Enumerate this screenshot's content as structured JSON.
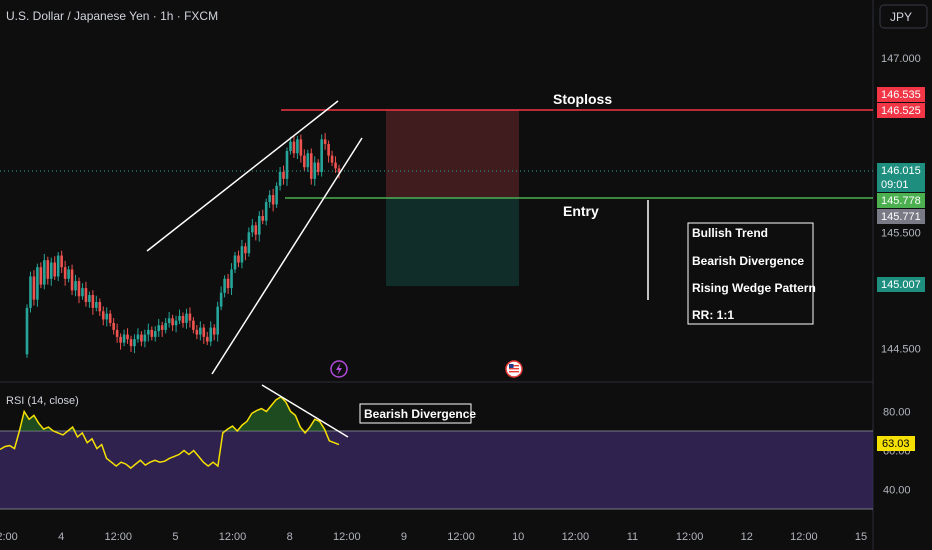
{
  "header": {
    "title": "U.S. Dollar / Japanese Yen · 1h · FXCM",
    "currency_button": "JPY"
  },
  "colors": {
    "background": "#0e0e0e",
    "up": "#26a69a",
    "down": "#ef5350",
    "stoploss_line": "#f23645",
    "entry_line": "#4caf50",
    "rsi_line": "#f5e000",
    "rsi_band": "#3b2a64"
  },
  "annotations": {
    "stoploss_label": "Stoploss",
    "entry_label": "Entry",
    "info_box": [
      "Bullish Trend",
      "Bearish Divergence",
      "Rising Wedge Pattern",
      "RR: 1:1"
    ],
    "rsi_divergence_label": "Bearish Divergence"
  },
  "price_badges": {
    "stoploss_upper": "146.535",
    "stoploss_lower": "146.525",
    "current_price": "146.015",
    "countdown": "09:01",
    "entry": "145.778",
    "previous": "145.771",
    "target": "145.007"
  },
  "icons": [
    "lightning-event-icon",
    "us-flag-event-icon"
  ],
  "chart_data": [
    {
      "type": "candlestick",
      "title": "U.S. Dollar / Japanese Yen · 1h · FXCM",
      "y_ticks": [
        147.0,
        146.5,
        146.0,
        145.5,
        145.0,
        144.5
      ],
      "y_tick_labels": [
        "147.000",
        "",
        "",
        "145.500",
        "",
        "144.500"
      ],
      "x_tick_labels": [
        "12:00",
        "4",
        "12:00",
        "5",
        "12:00",
        "8",
        "12:00",
        "9",
        "12:00",
        "10",
        "12:00",
        "11",
        "12:00",
        "12",
        "12:00",
        "15"
      ],
      "closes": [
        144.85,
        145.12,
        144.92,
        145.2,
        145.05,
        145.26,
        145.1,
        145.24,
        145.12,
        145.3,
        145.2,
        145.1,
        145.18,
        145.0,
        145.08,
        144.95,
        145.02,
        144.9,
        144.96,
        144.85,
        144.9,
        144.82,
        144.75,
        144.8,
        144.72,
        144.66,
        144.6,
        144.55,
        144.62,
        144.58,
        144.52,
        144.58,
        144.62,
        144.56,
        144.62,
        144.66,
        144.6,
        144.65,
        144.7,
        144.66,
        144.72,
        144.76,
        144.7,
        144.74,
        144.78,
        144.72,
        144.8,
        144.74,
        144.66,
        144.62,
        144.68,
        144.6,
        144.56,
        144.68,
        144.62,
        144.86,
        144.98,
        145.1,
        145.02,
        145.18,
        145.3,
        145.24,
        145.38,
        145.32,
        145.5,
        145.56,
        145.48,
        145.64,
        145.6,
        145.76,
        145.82,
        145.74,
        145.9,
        146.02,
        145.96,
        146.2,
        146.28,
        146.18,
        146.3,
        146.16,
        146.06,
        146.18,
        145.96,
        146.1,
        146.02,
        146.3,
        146.26,
        146.16,
        146.1,
        146.05,
        146.015
      ]
    },
    {
      "type": "line",
      "title": "RSI (14, close)",
      "y_ticks": [
        80.0,
        63.03,
        60.0,
        40.0
      ],
      "y_tick_labels": [
        "80.00",
        "63.03",
        "60.00",
        "40.00"
      ],
      "band": [
        30,
        70
      ],
      "values": [
        60.5,
        62.0,
        62.5,
        61.0,
        70.0,
        80.0,
        76.0,
        78.0,
        74.0,
        71.0,
        72.0,
        70.0,
        69.0,
        68.0,
        70.0,
        72.0,
        67.0,
        69.0,
        64.0,
        66.0,
        61.0,
        63.0,
        56.0,
        54.0,
        52.0,
        54.0,
        53.0,
        51.0,
        53.0,
        55.0,
        52.5,
        54.0,
        55.0,
        54.0,
        54.5,
        56.0,
        57.0,
        58.0,
        60.0,
        58.0,
        60.0,
        57.0,
        54.0,
        52.0,
        54.0,
        52.0,
        69.0,
        71.0,
        72.5,
        70.0,
        73.0,
        75.0,
        79.0,
        80.5,
        81.5,
        80.0,
        83.0,
        86.0,
        87.5,
        85.0,
        80.0,
        78.0,
        72.0,
        69.0,
        72.0,
        76.0,
        75.0,
        71.0,
        65.0,
        64.0,
        63.03
      ]
    }
  ]
}
